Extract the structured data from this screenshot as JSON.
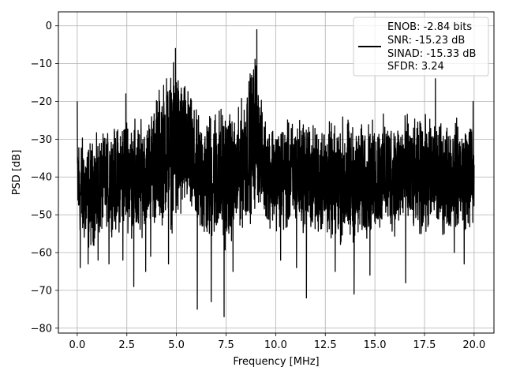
{
  "chart_data": {
    "type": "line",
    "title": "",
    "xlabel": "Frequency [MHz]",
    "ylabel": "PSD [dB]",
    "xlim": [
      -0.95,
      21.0
    ],
    "ylim": [
      -81.3,
      3.7
    ],
    "x_ticks": [
      0.0,
      2.5,
      5.0,
      7.5,
      10.0,
      12.5,
      15.0,
      17.5,
      20.0
    ],
    "x_tick_labels": [
      "0.0",
      "2.5",
      "5.0",
      "7.5",
      "10.0",
      "12.5",
      "15.0",
      "17.5",
      "20.0"
    ],
    "y_ticks": [
      0,
      -10,
      -20,
      -30,
      -40,
      -50,
      -60,
      -70,
      -80
    ],
    "y_tick_labels": [
      "0",
      "−10",
      "−20",
      "−30",
      "−40",
      "−50",
      "−60",
      "−70",
      "−80"
    ],
    "grid": true,
    "legend_position": "top-right",
    "legend_lines": [
      "ENOB: -2.84 bits",
      "SNR: -15.23 dB",
      "SINAD: -15.33 dB",
      "SFDR: 3.24"
    ],
    "series_color": "#000000",
    "x_range": [
      0.0,
      20.0
    ],
    "envelope": {
      "x": [
        0.0,
        0.5,
        1.0,
        1.5,
        2.0,
        2.5,
        3.0,
        3.5,
        4.0,
        4.5,
        5.0,
        5.5,
        6.0,
        6.5,
        7.0,
        7.5,
        8.0,
        8.5,
        8.9,
        9.0,
        9.2,
        9.5,
        10.0,
        10.5,
        11.0,
        11.5,
        12.0,
        12.5,
        13.0,
        13.5,
        14.0,
        14.5,
        15.0,
        15.5,
        16.0,
        16.5,
        17.0,
        17.5,
        18.0,
        18.5,
        19.0,
        19.5,
        20.0
      ],
      "top": [
        -25,
        -28,
        -27,
        -26,
        -24,
        -20,
        -22,
        -23,
        -14,
        -10,
        -6,
        -12,
        -20,
        -20,
        -17,
        -18,
        -22,
        -12,
        -5,
        -1,
        -16,
        -22,
        -23,
        -23,
        -22,
        -21,
        -24,
        -22,
        -24,
        -20,
        -24,
        -23,
        -23,
        -21,
        -22,
        -20,
        -23,
        -21,
        -22,
        -23,
        -22,
        -23,
        -21
      ],
      "bottom": [
        -57,
        -63,
        -60,
        -55,
        -58,
        -56,
        -62,
        -54,
        -57,
        -55,
        -60,
        -52,
        -58,
        -62,
        -60,
        -62,
        -58,
        -56,
        -54,
        -52,
        -50,
        -55,
        -56,
        -58,
        -56,
        -57,
        -58,
        -59,
        -60,
        -62,
        -61,
        -59,
        -58,
        -57,
        -58,
        -57,
        -58,
        -59,
        -57,
        -58,
        -56,
        -57,
        -57
      ]
    },
    "spikes": [
      {
        "x": 0.0,
        "y": -20
      },
      {
        "x": 0.15,
        "y": -64
      },
      {
        "x": 0.55,
        "y": -63
      },
      {
        "x": 1.05,
        "y": -62
      },
      {
        "x": 1.6,
        "y": -63
      },
      {
        "x": 2.3,
        "y": -62
      },
      {
        "x": 2.45,
        "y": -18
      },
      {
        "x": 2.85,
        "y": -69
      },
      {
        "x": 3.45,
        "y": -65
      },
      {
        "x": 3.7,
        "y": -61
      },
      {
        "x": 4.5,
        "y": -14
      },
      {
        "x": 4.6,
        "y": -63
      },
      {
        "x": 4.95,
        "y": -6
      },
      {
        "x": 6.05,
        "y": -75
      },
      {
        "x": 6.75,
        "y": -73
      },
      {
        "x": 7.4,
        "y": -77
      },
      {
        "x": 7.85,
        "y": -65
      },
      {
        "x": 9.05,
        "y": -1
      },
      {
        "x": 10.25,
        "y": -62
      },
      {
        "x": 11.05,
        "y": -64
      },
      {
        "x": 11.55,
        "y": -72
      },
      {
        "x": 13.0,
        "y": -65
      },
      {
        "x": 13.95,
        "y": -71
      },
      {
        "x": 14.75,
        "y": -66
      },
      {
        "x": 16.55,
        "y": -68
      },
      {
        "x": 18.05,
        "y": -14
      },
      {
        "x": 19.0,
        "y": -60
      },
      {
        "x": 19.5,
        "y": -63
      },
      {
        "x": 19.95,
        "y": -20
      }
    ]
  }
}
